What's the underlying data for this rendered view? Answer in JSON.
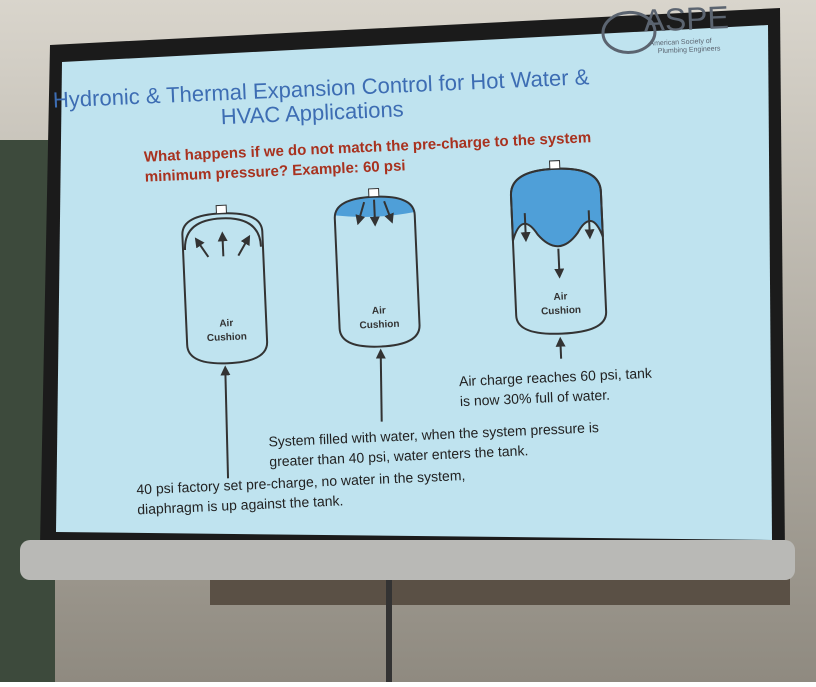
{
  "logo": {
    "name": "ASPE",
    "subtitle_lines": [
      "American Society of",
      "Plumbing Engineers"
    ]
  },
  "title_lines": [
    "Hydronic & Thermal Expansion Control for Hot Water &",
    "HVAC Applications"
  ],
  "question_lines": [
    "What happens if we do not match the pre-charge to the system",
    "minimum pressure? Example: 60 psi"
  ],
  "tanks": [
    {
      "label_lines": [
        "Air",
        "Cushion"
      ]
    },
    {
      "label_lines": [
        "Air",
        "Cushion"
      ]
    },
    {
      "label_lines": [
        "Air",
        "Cushion"
      ]
    }
  ],
  "captions": [
    {
      "lines": [
        "40 psi factory set pre-charge, no water in the system,",
        "diaphragm is up against the tank."
      ]
    },
    {
      "lines": [
        "System filled with water, when the system pressure is",
        "greater than 40 psi, water enters the tank."
      ]
    },
    {
      "lines": [
        "Air charge reaches 60 psi, tank",
        "is now 30% full of water."
      ]
    }
  ]
}
